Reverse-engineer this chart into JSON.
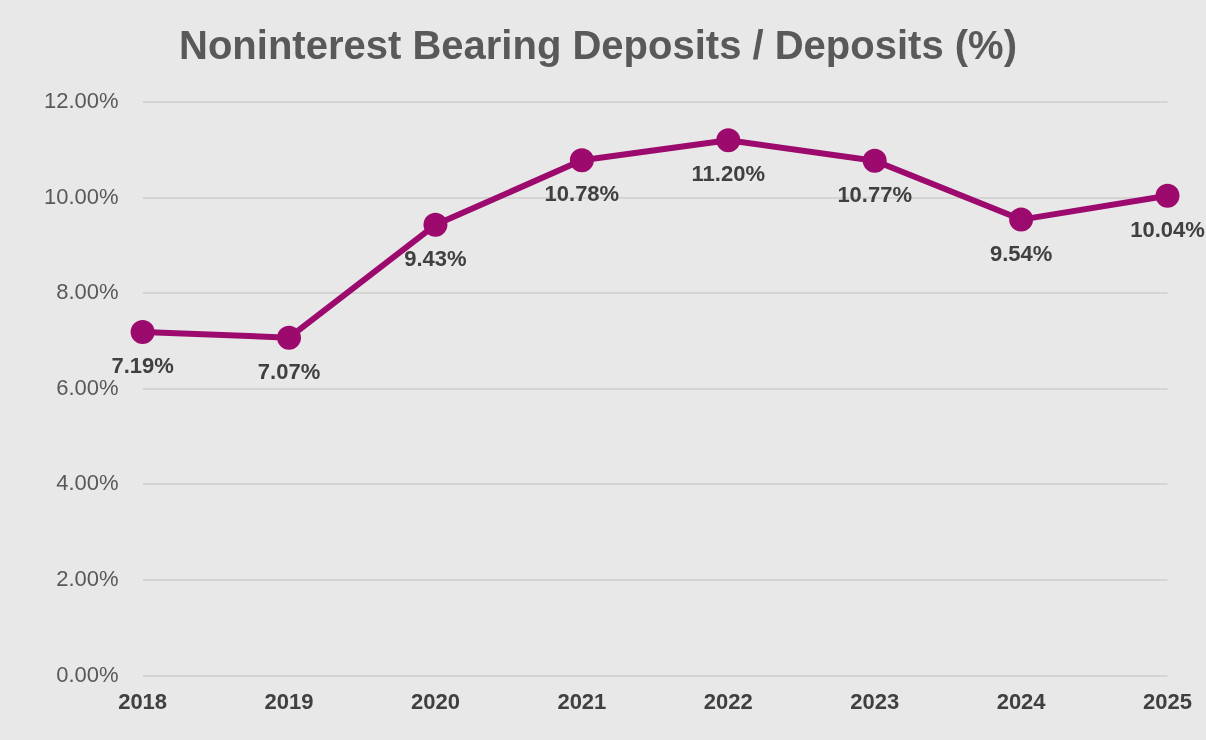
{
  "chart_data": {
    "type": "line",
    "title": "Noninterest Bearing Deposits / Deposits (%)",
    "categories": [
      "2018",
      "2019",
      "2020",
      "2021",
      "2022",
      "2023",
      "2024",
      "2025"
    ],
    "series": [
      {
        "color": "#9c0a6e",
        "values": [
          7.19,
          7.07,
          9.43,
          10.78,
          11.2,
          10.77,
          9.54,
          10.04
        ],
        "value_labels": [
          "7.19%",
          "7.07%",
          "9.43%",
          "10.78%",
          "11.20%",
          "10.77%",
          "9.54%",
          "10.04%"
        ]
      }
    ],
    "ylim": [
      0,
      12
    ],
    "yticks": [
      {
        "value": 0,
        "label": "0.00%"
      },
      {
        "value": 2,
        "label": "2.00%"
      },
      {
        "value": 4,
        "label": "4.00%"
      },
      {
        "value": 6,
        "label": "6.00%"
      },
      {
        "value": 8,
        "label": "8.00%"
      },
      {
        "value": 10,
        "label": "10.00%"
      },
      {
        "value": 12,
        "label": "12.00%"
      }
    ],
    "grid": "y",
    "legend": false,
    "marker": "circle",
    "line_style": "solid"
  }
}
